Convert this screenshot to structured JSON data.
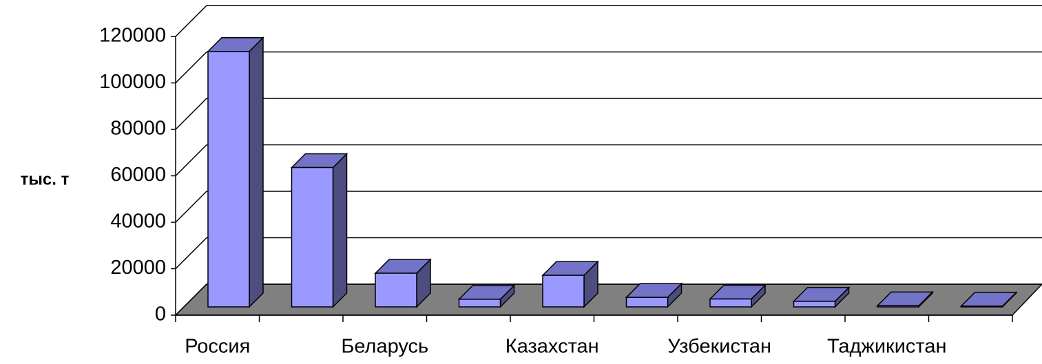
{
  "chart_data": {
    "type": "bar3d",
    "y_label": "тыс. т",
    "categories": [
      "Россия",
      null,
      "Беларусь",
      null,
      "Казахстан",
      null,
      "Узбекистан",
      null,
      "Таджикистан",
      null
    ],
    "values": [
      110000,
      60000,
      14500,
      3300,
      13600,
      4100,
      3400,
      2400,
      500,
      300
    ],
    "color": "#9999ff",
    "ylim": [
      0,
      120000
    ],
    "yticks": [
      0,
      20000,
      40000,
      60000,
      80000,
      100000,
      120000
    ],
    "grid": true
  }
}
